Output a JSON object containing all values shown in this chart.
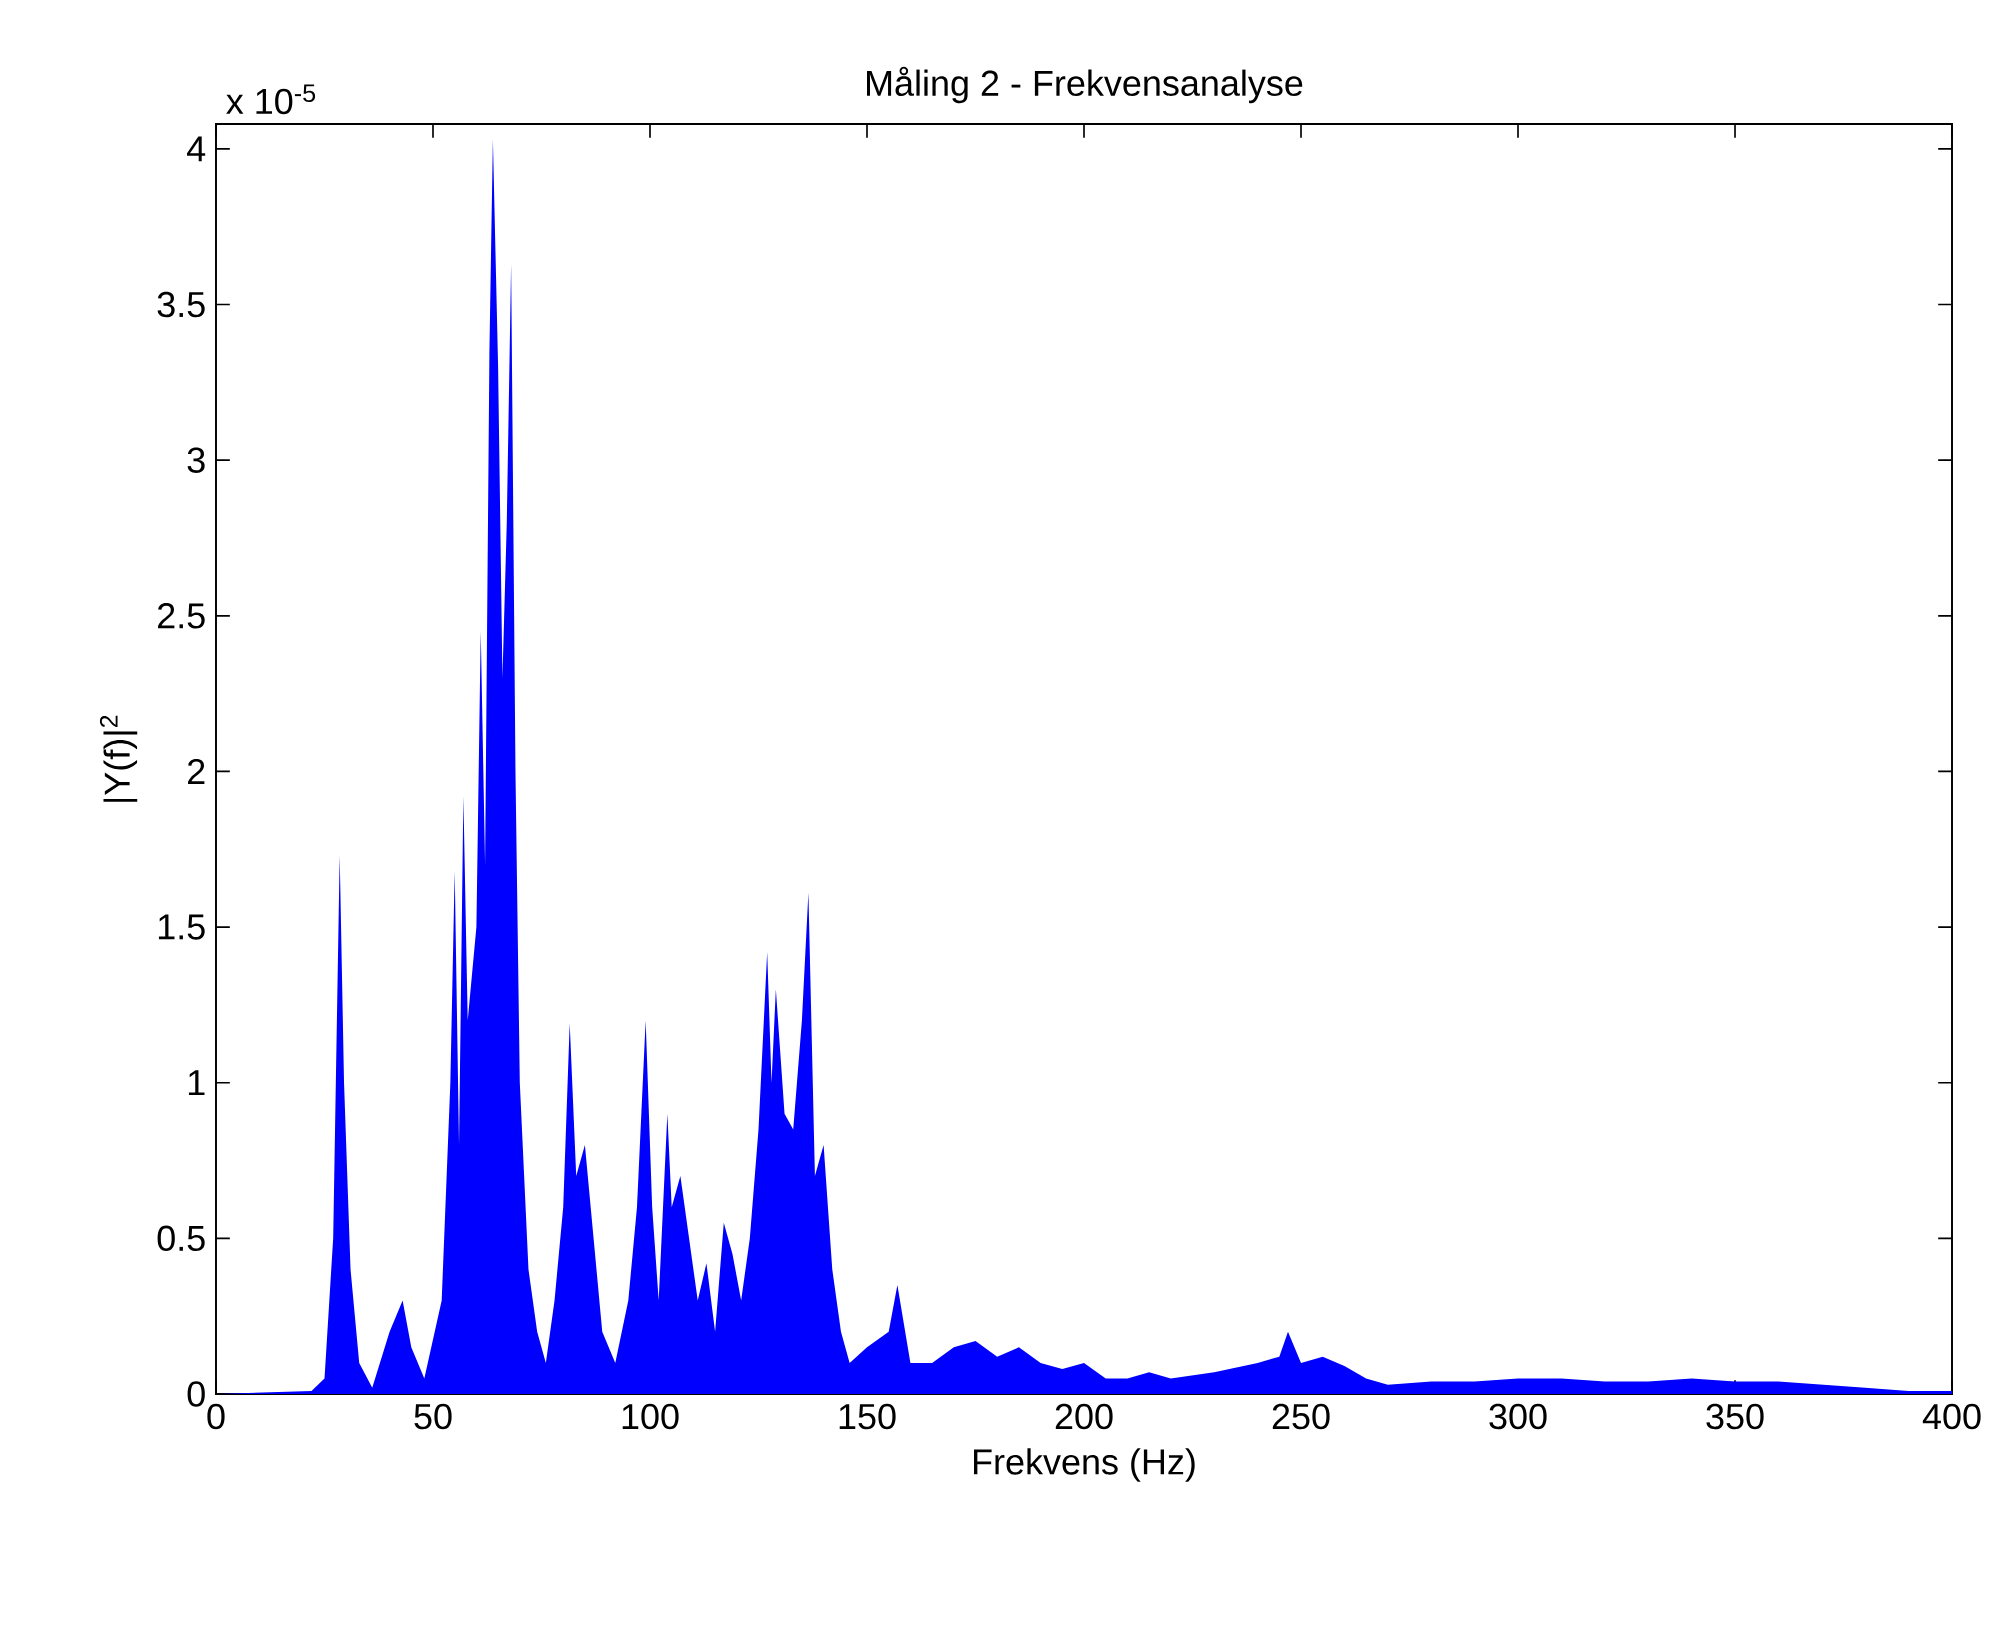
{
  "chart_data": {
    "type": "area",
    "title": "Måling 2 - Frekvensanalyse",
    "xlabel": "Frekvens (Hz)",
    "ylabel": "|Y(f)|$^{2}$",
    "annotations": [
      "x 10$^{-5}$"
    ],
    "x": [
      0,
      22,
      25,
      27,
      28.5,
      29.5,
      31,
      33,
      36,
      40,
      43,
      45,
      48,
      52,
      54,
      55,
      56,
      57,
      58,
      60,
      61,
      62,
      63,
      63.8,
      65,
      66,
      67,
      68,
      69,
      70,
      72,
      74,
      76,
      78,
      80,
      81.5,
      83,
      85,
      87,
      89,
      92,
      95,
      97,
      99,
      100.5,
      102,
      104,
      105,
      107,
      109,
      111,
      113,
      115,
      117,
      119,
      121,
      123,
      125,
      127,
      128,
      129,
      131,
      133,
      135,
      136.5,
      138,
      140,
      142,
      144,
      146,
      150,
      155,
      157,
      160,
      165,
      170,
      175,
      180,
      185,
      190,
      195,
      200,
      205,
      210,
      215,
      220,
      230,
      240,
      245,
      247,
      250,
      255,
      260,
      265,
      270,
      280,
      290,
      300,
      310,
      320,
      330,
      340,
      350,
      360,
      370,
      380,
      390,
      400
    ],
    "series": [
      {
        "color": "#0000ff",
        "values": [
          0,
          0.01,
          0.05,
          0.5,
          1.73,
          1.0,
          0.4,
          0.1,
          0.02,
          0.2,
          0.3,
          0.15,
          0.05,
          0.3,
          1.0,
          1.68,
          0.8,
          1.92,
          1.2,
          1.5,
          2.45,
          1.7,
          3.35,
          4.03,
          3.3,
          2.3,
          2.8,
          3.63,
          2.0,
          1.0,
          0.4,
          0.2,
          0.1,
          0.3,
          0.6,
          1.19,
          0.7,
          0.8,
          0.5,
          0.2,
          0.1,
          0.3,
          0.6,
          1.2,
          0.6,
          0.3,
          0.9,
          0.6,
          0.7,
          0.5,
          0.3,
          0.42,
          0.2,
          0.55,
          0.45,
          0.3,
          0.5,
          0.85,
          1.42,
          1.0,
          1.3,
          0.9,
          0.85,
          1.2,
          1.61,
          0.7,
          0.8,
          0.4,
          0.2,
          0.1,
          0.15,
          0.2,
          0.35,
          0.1,
          0.1,
          0.15,
          0.17,
          0.12,
          0.15,
          0.1,
          0.08,
          0.1,
          0.05,
          0.05,
          0.07,
          0.05,
          0.07,
          0.1,
          0.12,
          0.2,
          0.1,
          0.12,
          0.09,
          0.05,
          0.03,
          0.04,
          0.04,
          0.05,
          0.05,
          0.04,
          0.04,
          0.05,
          0.04,
          0.04,
          0.03,
          0.02,
          0.01,
          0.01
        ]
      }
    ],
    "xlim": [
      0,
      400
    ],
    "ylim": [
      0,
      4.08
    ],
    "xticks": [
      0,
      50,
      100,
      150,
      200,
      250,
      300,
      350,
      400
    ],
    "yticks": [
      0,
      0.5,
      1,
      1.5,
      2,
      2.5,
      3,
      3.5,
      4
    ],
    "grid": false,
    "marker": "none"
  }
}
